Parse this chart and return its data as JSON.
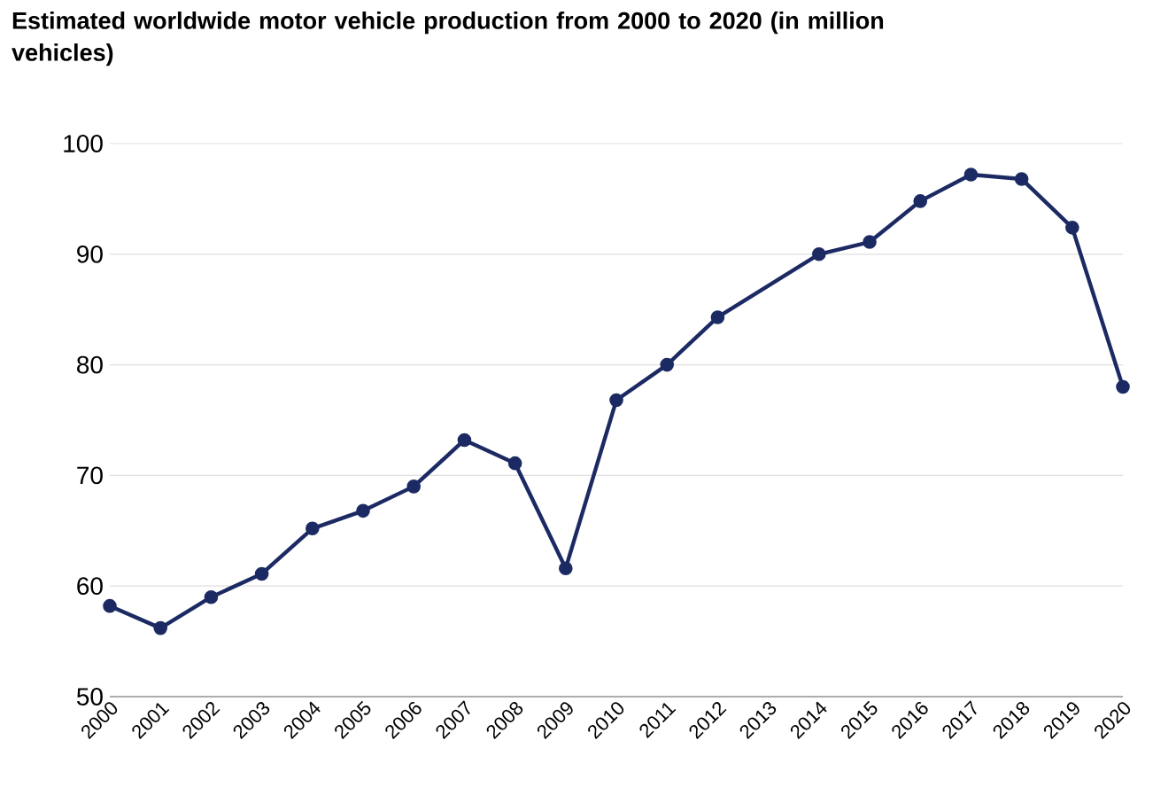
{
  "chart_data": {
    "type": "line",
    "title": "Estimated worldwide motor vehicle production from 2000 to 2020 (in million vehicles)",
    "x": [
      2000,
      2001,
      2002,
      2003,
      2004,
      2005,
      2006,
      2007,
      2008,
      2009,
      2010,
      2011,
      2012,
      2014,
      2015,
      2016,
      2017,
      2018,
      2019,
      2020
    ],
    "series": [
      {
        "color": "#1c2a64",
        "values": [
          58.2,
          56.2,
          59.0,
          61.1,
          65.2,
          66.8,
          69.0,
          73.2,
          71.1,
          61.6,
          76.8,
          80.0,
          84.3,
          90.0,
          91.1,
          94.8,
          97.2,
          96.8,
          92.4,
          78.0
        ]
      }
    ],
    "xlim": [
      2000,
      2020
    ],
    "xticks": [
      2000,
      2001,
      2002,
      2003,
      2004,
      2005,
      2006,
      2007,
      2008,
      2009,
      2010,
      2011,
      2012,
      2013,
      2014,
      2015,
      2016,
      2017,
      2018,
      2019,
      2020
    ],
    "ylim": [
      50,
      100
    ],
    "yticks": [
      50,
      60,
      70,
      80,
      90,
      100
    ],
    "grid": "y",
    "marker": "circle",
    "line_style": "solid"
  }
}
